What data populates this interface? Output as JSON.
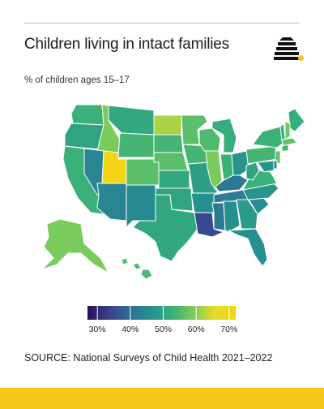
{
  "header": {
    "title": "Children living in intact families",
    "subtitle": "% of children ages 15–17"
  },
  "logo": {
    "icon": "beehive-icon",
    "accent": "#f5c518"
  },
  "map": {
    "region": "United States",
    "metric": "% of children ages 15–17 living in intact families",
    "states": [
      {
        "id": "WA",
        "value": 53
      },
      {
        "id": "OR",
        "value": 50
      },
      {
        "id": "CA",
        "value": 53
      },
      {
        "id": "ID",
        "value": 59
      },
      {
        "id": "NV",
        "value": 44
      },
      {
        "id": "UT",
        "value": 71
      },
      {
        "id": "AZ",
        "value": 44
      },
      {
        "id": "MT",
        "value": 51
      },
      {
        "id": "WY",
        "value": 54
      },
      {
        "id": "CO",
        "value": 56
      },
      {
        "id": "NM",
        "value": 45
      },
      {
        "id": "ND",
        "value": 62
      },
      {
        "id": "SD",
        "value": 54
      },
      {
        "id": "NE",
        "value": 56
      },
      {
        "id": "KS",
        "value": 51
      },
      {
        "id": "OK",
        "value": 50
      },
      {
        "id": "TX",
        "value": 51
      },
      {
        "id": "MN",
        "value": 56
      },
      {
        "id": "IA",
        "value": 54
      },
      {
        "id": "MO",
        "value": 49
      },
      {
        "id": "AR",
        "value": 46
      },
      {
        "id": "LA",
        "value": 35
      },
      {
        "id": "WI",
        "value": 55
      },
      {
        "id": "IL",
        "value": 59
      },
      {
        "id": "MI",
        "value": 52
      },
      {
        "id": "IN",
        "value": 53
      },
      {
        "id": "OH",
        "value": 47
      },
      {
        "id": "KY",
        "value": 42
      },
      {
        "id": "TN",
        "value": 43
      },
      {
        "id": "MS",
        "value": 42
      },
      {
        "id": "AL",
        "value": 46
      },
      {
        "id": "GA",
        "value": 48
      },
      {
        "id": "FL",
        "value": 46
      },
      {
        "id": "SC",
        "value": 46
      },
      {
        "id": "NC",
        "value": 47
      },
      {
        "id": "VA",
        "value": 53
      },
      {
        "id": "WV",
        "value": 50
      },
      {
        "id": "PA",
        "value": 54
      },
      {
        "id": "NY",
        "value": 53
      },
      {
        "id": "ME",
        "value": 52
      },
      {
        "id": "VT",
        "value": 51
      },
      {
        "id": "NH",
        "value": 58
      },
      {
        "id": "MA",
        "value": 57
      },
      {
        "id": "CT",
        "value": 54
      },
      {
        "id": "NJ",
        "value": 57
      },
      {
        "id": "MD",
        "value": 47
      },
      {
        "id": "DE",
        "value": 45
      },
      {
        "id": "AK",
        "value": 59
      },
      {
        "id": "HI",
        "value": 55
      }
    ]
  },
  "legend": {
    "min": 27,
    "max": 72,
    "ticks": [
      {
        "value": 30,
        "label": "30%"
      },
      {
        "value": 40,
        "label": "40%"
      },
      {
        "value": 50,
        "label": "50%"
      },
      {
        "value": 60,
        "label": "60%"
      },
      {
        "value": 70,
        "label": "70%"
      }
    ],
    "colors": [
      "#2b1055",
      "#3b3f8c",
      "#2f6d97",
      "#26928f",
      "#38b07a",
      "#7ccb5b",
      "#e3dc2a",
      "#f5d410"
    ]
  },
  "source": "SOURCE: National Surveys of Child Health 2021–2022",
  "colors": {
    "footer": "#f5c518",
    "border": "#ffffff"
  }
}
